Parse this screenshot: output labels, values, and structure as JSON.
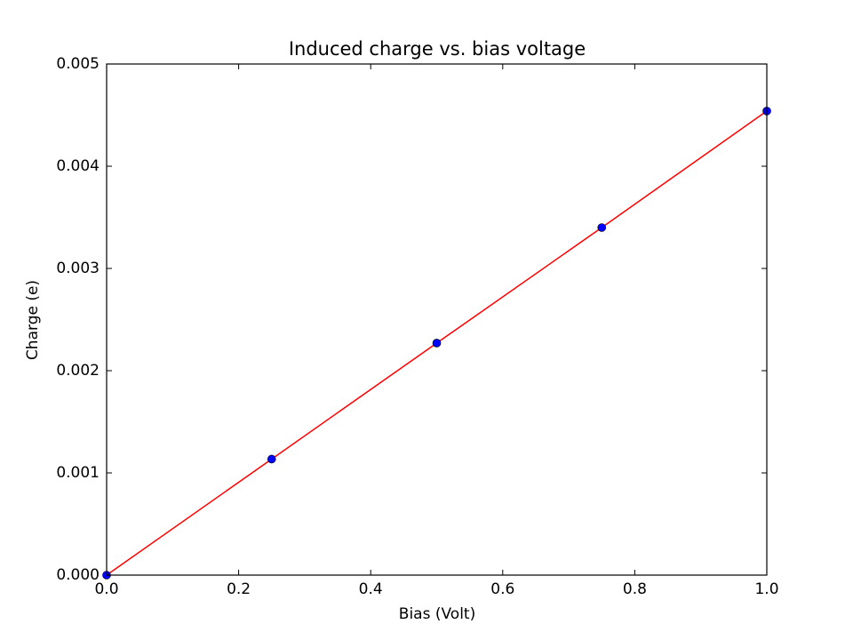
{
  "chart_data": {
    "type": "line",
    "title": "Induced charge vs. bias voltage",
    "x_label": "Bias (Volt)",
    "y_label": "Charge (e)",
    "x": [
      0,
      0.25,
      0.5,
      0.75,
      1.0
    ],
    "values": [
      0,
      0.001135,
      0.00227,
      0.0034,
      0.00454
    ],
    "line_color": "#ff0000",
    "marker_color": "#0000ff",
    "xlim": [
      0,
      1
    ],
    "ylim": [
      0,
      0.005
    ],
    "xticks": [
      {
        "value": 0,
        "label": "0.0"
      },
      0.2,
      0.4,
      0.6,
      0.8,
      {
        "value": 1,
        "label": "1.0"
      }
    ],
    "yticks": [
      {
        "value": 0,
        "label": "0.000"
      },
      {
        "value": 0.001,
        "label": "0.001"
      },
      {
        "value": 0.002,
        "label": "0.002"
      },
      {
        "value": 0.003,
        "label": "0.003"
      },
      {
        "value": 0.004,
        "label": "0.004"
      },
      {
        "value": 0.005,
        "label": "0.005"
      }
    ],
    "grid": false
  }
}
